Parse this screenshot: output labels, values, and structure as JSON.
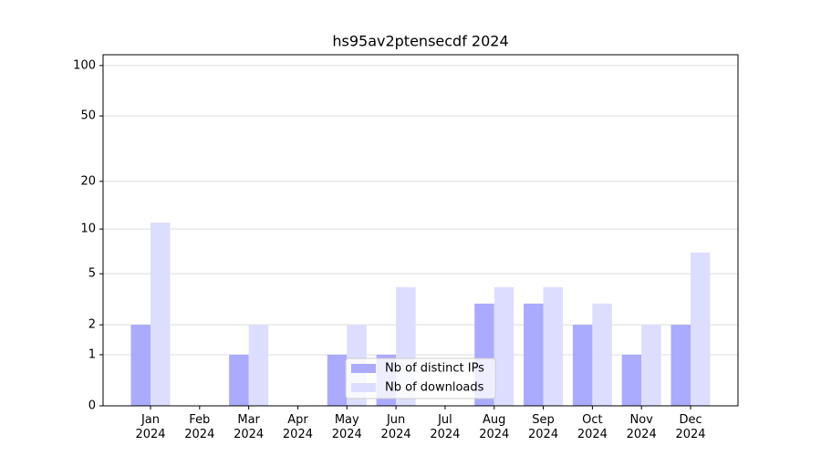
{
  "chart_data": {
    "type": "bar",
    "title": "hs95av2ptensecdf 2024",
    "categories": [
      "Jan 2024",
      "Feb 2024",
      "Mar 2024",
      "Apr 2024",
      "May 2024",
      "Jun 2024",
      "Jul 2024",
      "Aug 2024",
      "Sep 2024",
      "Oct 2024",
      "Nov 2024",
      "Dec 2024"
    ],
    "series": [
      {
        "name": "Nb of distinct IPs",
        "color": "#aaaaff",
        "values": [
          2,
          0,
          1,
          0,
          1,
          1,
          0,
          3,
          3,
          2,
          1,
          2
        ]
      },
      {
        "name": "Nb of downloads",
        "color": "#ddddff",
        "values": [
          11,
          0,
          2,
          0,
          2,
          4,
          0,
          4,
          4,
          3,
          2,
          7
        ]
      }
    ],
    "yscale": "symlog",
    "ylim": [
      0,
      116
    ],
    "yticks": [
      0,
      1,
      2,
      5,
      10,
      20,
      50,
      100
    ],
    "grid": true,
    "legend": "lower center"
  }
}
